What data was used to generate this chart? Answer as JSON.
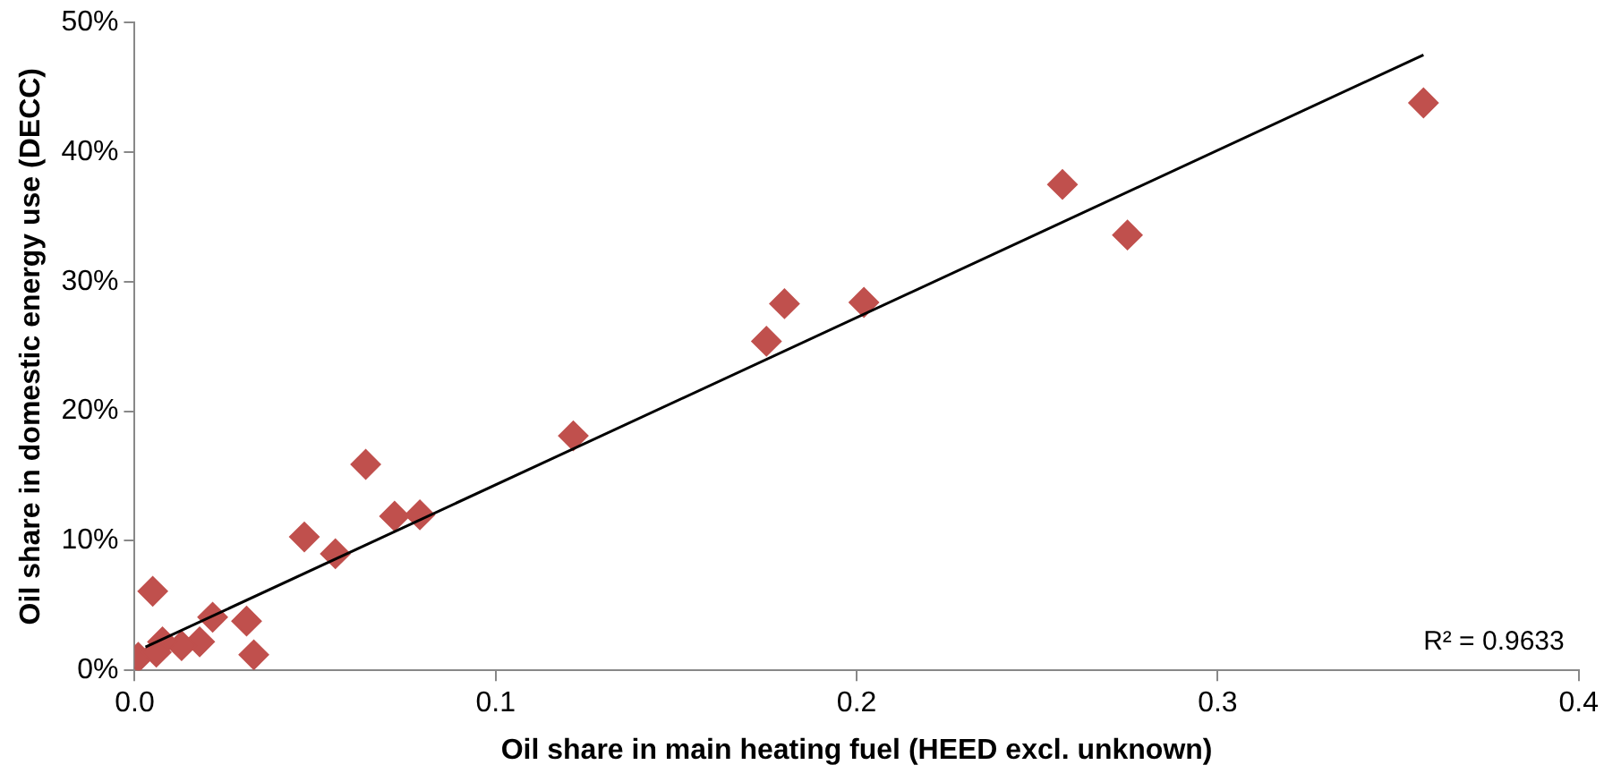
{
  "chart_data": {
    "type": "scatter",
    "xlabel": "Oil share in main heating fuel (HEED excl. unknown)",
    "ylabel": "Oil share in domestic energy use (DECC)",
    "xlim": [
      0,
      0.4
    ],
    "xticks": [
      {
        "value": 0,
        "label": "0.0"
      },
      {
        "value": 0.1,
        "label": "0.1"
      },
      {
        "value": 0.2,
        "label": "0.2"
      },
      {
        "value": 0.3,
        "label": "0.3"
      },
      {
        "value": 0.4,
        "label": "0.4"
      }
    ],
    "ylim": [
      0,
      50
    ],
    "yticks": [
      {
        "value": 0,
        "label": "0%"
      },
      {
        "value": 10,
        "label": "10%"
      },
      {
        "value": 20,
        "label": "20%"
      },
      {
        "value": 30,
        "label": "30%"
      },
      {
        "value": 40,
        "label": "40%"
      },
      {
        "value": 50,
        "label": "50%"
      }
    ],
    "grid": false,
    "legend": false,
    "marker": "diamond",
    "series": [
      {
        "color": "#c0504d",
        "x": [
          0.357,
          0.257,
          0.275,
          0.18,
          0.202,
          0.175,
          0.1215,
          0.064,
          0.047,
          0.0556,
          0.072,
          0.079,
          0.005,
          0.031,
          0.033,
          0.0216,
          0.018,
          0.013,
          0.0077,
          0.0026,
          0.001,
          0.006
        ],
        "values": [
          43.8,
          37.5,
          33.6,
          28.3,
          28.4,
          25.4,
          18.1,
          15.9,
          10.3,
          9.0,
          11.9,
          12.0,
          6.1,
          3.8,
          1.2,
          4.1,
          2.2,
          1.9,
          2.2,
          null,
          1.0,
          1.4
        ]
      },
      {
        "type": "line",
        "color": "#000000",
        "marker": "none",
        "x": [
          0.003,
          0.357
        ],
        "values": [
          1.8,
          47.5
        ]
      }
    ],
    "annotations": [
      "R² = 0.9633"
    ]
  }
}
